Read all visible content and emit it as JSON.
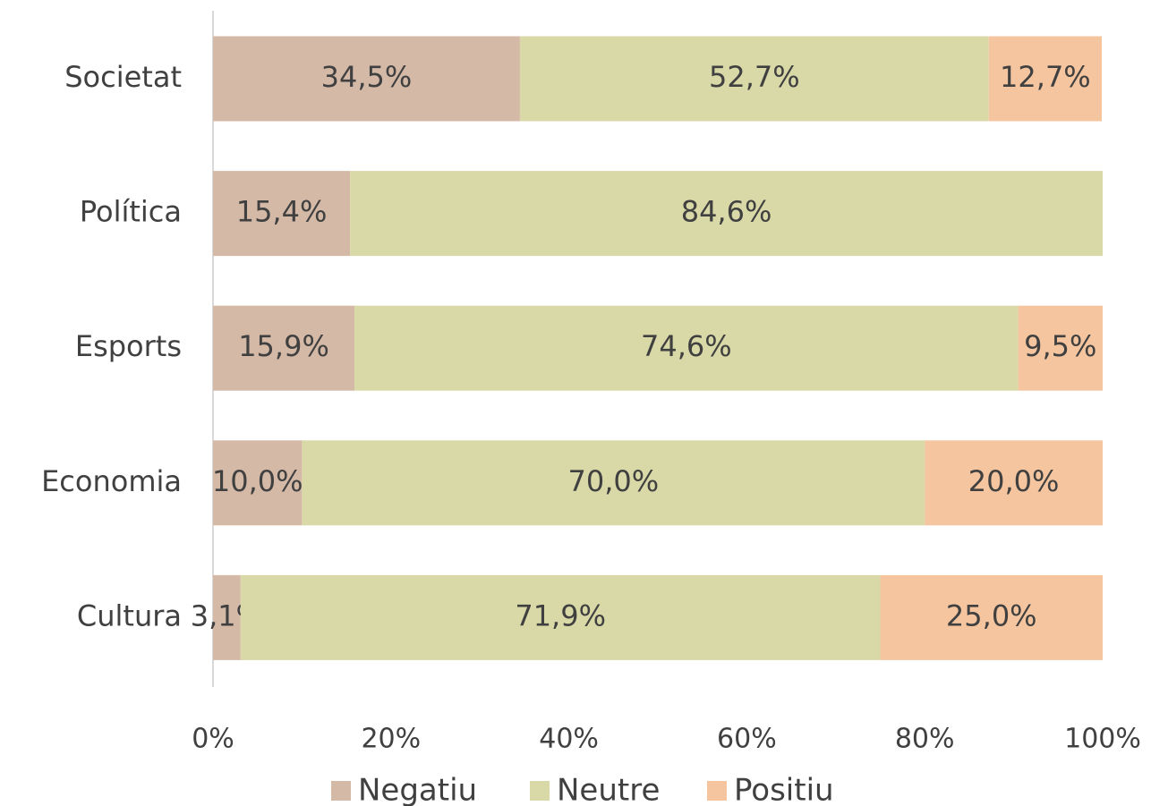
{
  "chart_data": {
    "type": "stacked_bar_horizontal",
    "categories": [
      "Societat",
      "Política",
      "Esports",
      "Economia",
      "Cultura"
    ],
    "series": [
      {
        "name": "Negatiu",
        "color": "#d4b9a7",
        "values": [
          34.5,
          15.4,
          15.9,
          10.0,
          3.1
        ],
        "value_labels": [
          "34,5%",
          "15,4%",
          "15,9%",
          "10,0%",
          "3,1%"
        ]
      },
      {
        "name": "Neutre",
        "color": "#d9d9a8",
        "values": [
          52.7,
          84.6,
          74.6,
          70.0,
          71.9
        ],
        "value_labels": [
          "52,7%",
          "84,6%",
          "74,6%",
          "70,0%",
          "71,9%"
        ]
      },
      {
        "name": "Positiu",
        "color": "#f4c59e",
        "values": [
          12.7,
          null,
          9.5,
          20.0,
          25.0
        ],
        "value_labels": [
          "12,7%",
          null,
          "9,5%",
          "20,0%",
          "25,0%"
        ]
      }
    ],
    "xlim": [
      0,
      100
    ],
    "xticks": [
      {
        "value": 0,
        "label": "0%"
      },
      {
        "value": 20,
        "label": "20%"
      },
      {
        "value": 40,
        "label": "40%"
      },
      {
        "value": 60,
        "label": "60%"
      },
      {
        "value": 80,
        "label": "80%"
      },
      {
        "value": 100,
        "label": "100%"
      }
    ],
    "legend": "bottom"
  }
}
